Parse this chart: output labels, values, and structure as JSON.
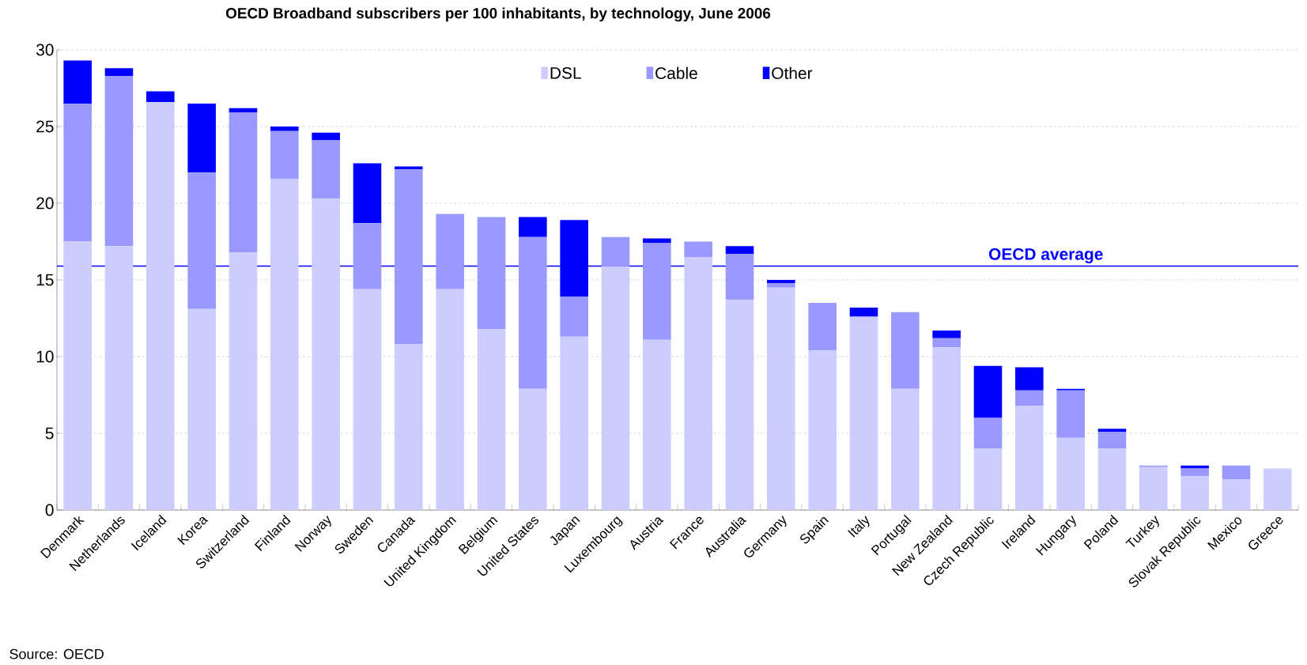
{
  "chart_data": {
    "type": "bar",
    "stacked": true,
    "title": "OECD Broadband subscribers per 100 inhabitants, by technology, June 2006",
    "categories": [
      "Denmark",
      "Netherlands",
      "Iceland",
      "Korea",
      "Switzerland",
      "Finland",
      "Norway",
      "Sweden",
      "Canada",
      "United Kingdom",
      "Belgium",
      "United States",
      "Japan",
      "Luxembourg",
      "Austria",
      "France",
      "Australia",
      "Germany",
      "Spain",
      "Italy",
      "Portugal",
      "New Zealand",
      "Czech Republic",
      "Ireland",
      "Hungary",
      "Poland",
      "Turkey",
      "Slovak Republic",
      "Mexico",
      "Greece"
    ],
    "series": [
      {
        "name": "DSL",
        "color": "#ccccff",
        "values": [
          17.5,
          17.2,
          26.6,
          13.1,
          16.8,
          21.6,
          20.3,
          14.4,
          10.8,
          14.4,
          11.8,
          7.9,
          11.3,
          15.9,
          11.1,
          16.5,
          13.7,
          14.5,
          10.4,
          12.6,
          7.9,
          10.6,
          4.0,
          6.8,
          4.7,
          4.0,
          2.8,
          2.2,
          2.0,
          2.7
        ]
      },
      {
        "name": "Cable",
        "color": "#9999ff",
        "values": [
          9.0,
          11.1,
          0,
          8.9,
          9.1,
          3.1,
          3.8,
          4.3,
          11.4,
          4.9,
          7.3,
          9.9,
          2.6,
          1.9,
          6.3,
          1.0,
          3.0,
          0.3,
          3.1,
          0,
          5.0,
          0.6,
          2.0,
          1.0,
          3.1,
          1.1,
          0.1,
          0.5,
          0.9,
          0
        ]
      },
      {
        "name": "Other",
        "color": "#0000ff",
        "values": [
          2.8,
          0.5,
          0.7,
          4.5,
          0.3,
          0.3,
          0.5,
          3.9,
          0.2,
          0,
          0,
          1.3,
          5.0,
          0,
          0.3,
          0,
          0.5,
          0.2,
          0,
          0.6,
          0,
          0.5,
          3.4,
          1.5,
          0.1,
          0.2,
          0,
          0.2,
          0,
          0
        ]
      }
    ],
    "ylim": [
      0,
      30
    ],
    "yticks": [
      0,
      5,
      10,
      15,
      20,
      25,
      30
    ],
    "grid": "y",
    "legend": "top",
    "ref_lines": [
      {
        "axis": "y",
        "value": 15.9,
        "label": "OECD average",
        "color": "#0000ff"
      }
    ],
    "annotations": [
      "Source: OECD"
    ]
  }
}
